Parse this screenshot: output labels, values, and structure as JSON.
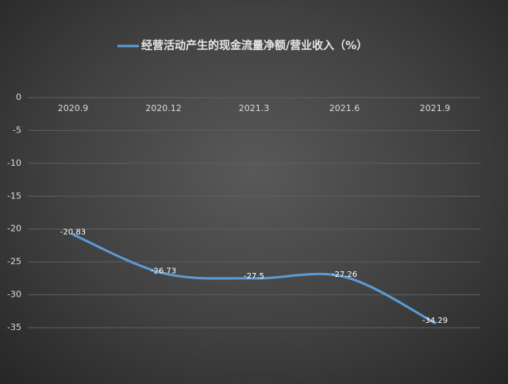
{
  "chart_data": {
    "type": "line",
    "categories": [
      "2020.9",
      "2020.12",
      "2021.3",
      "2021.6",
      "2021.9"
    ],
    "series": [
      {
        "name": "经营活动产生的现金流量净额/营业收入（%）",
        "color": "#5b9bd5",
        "values": [
          -20.83,
          -26.73,
          -27.5,
          -27.26,
          -34.29
        ]
      }
    ],
    "ylim": [
      -35,
      0
    ],
    "yticks": [
      0,
      -5,
      -10,
      -15,
      -20,
      -25,
      -30,
      -35
    ],
    "grid": true,
    "smooth": true,
    "legend": "top"
  }
}
